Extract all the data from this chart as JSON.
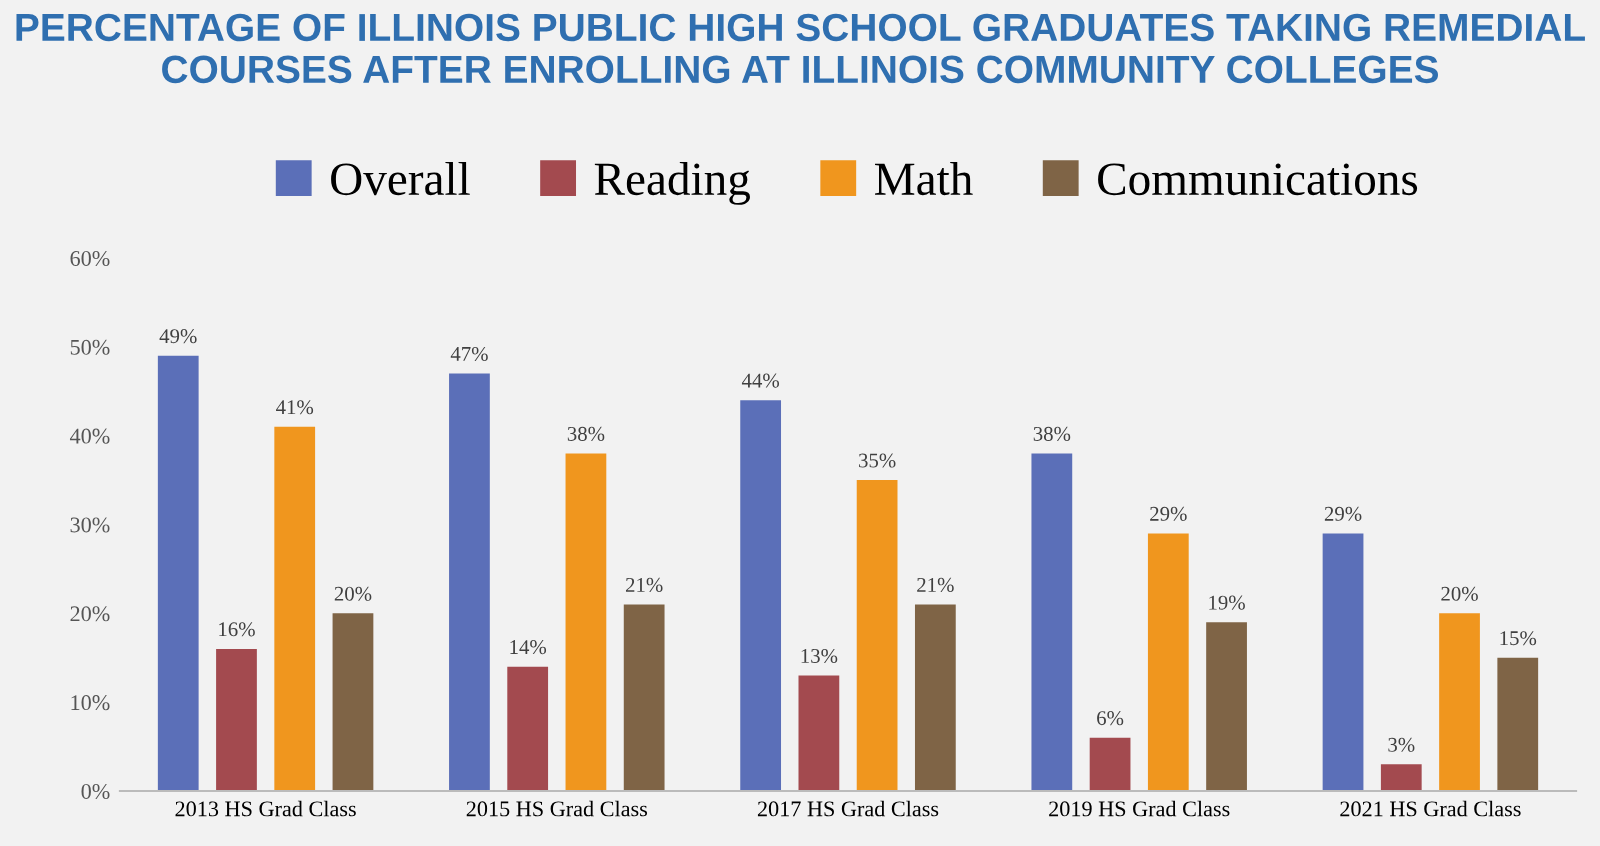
{
  "chart_data": {
    "type": "bar",
    "title": "PERCENTAGE OF ILLINOIS PUBLIC HIGH SCHOOL GRADUATES TAKING REMEDIAL\nCOURSES AFTER ENROLLING AT ILLINOIS COMMUNITY COLLEGES",
    "categories": [
      "2013 HS Grad Class",
      "2015 HS Grad Class",
      "2017 HS Grad Class",
      "2019 HS Grad Class",
      "2021 HS Grad Class"
    ],
    "series": [
      {
        "name": "Overall",
        "color": "#5b6fb8",
        "values": [
          49,
          47,
          44,
          38,
          29
        ],
        "value_labels": [
          "49%",
          "47%",
          "44%",
          "38%",
          "29%"
        ]
      },
      {
        "name": "Reading",
        "color": "#a34a4f",
        "values": [
          16,
          14,
          13,
          6,
          3
        ],
        "value_labels": [
          "16%",
          "14%",
          "13%",
          "6%",
          "3%"
        ]
      },
      {
        "name": "Math",
        "color": "#f0961e",
        "values": [
          41,
          38,
          35,
          29,
          20
        ],
        "value_labels": [
          "41%",
          "38%",
          "35%",
          "29%",
          "20%"
        ]
      },
      {
        "name": "Communications",
        "color": "#7f6446",
        "values": [
          20,
          21,
          21,
          19,
          15
        ],
        "value_labels": [
          "20%",
          "21%",
          "21%",
          "19%",
          "15%"
        ]
      }
    ],
    "ylim": [
      0,
      60
    ],
    "yticks": [
      {
        "value": 0,
        "label": "0%"
      },
      {
        "value": 10,
        "label": "10%"
      },
      {
        "value": 20,
        "label": "20%"
      },
      {
        "value": 30,
        "label": "30%"
      },
      {
        "value": 40,
        "label": "40%"
      },
      {
        "value": 50,
        "label": "50%"
      },
      {
        "value": 60,
        "label": "60%"
      }
    ],
    "legend": "top",
    "grid": false
  }
}
